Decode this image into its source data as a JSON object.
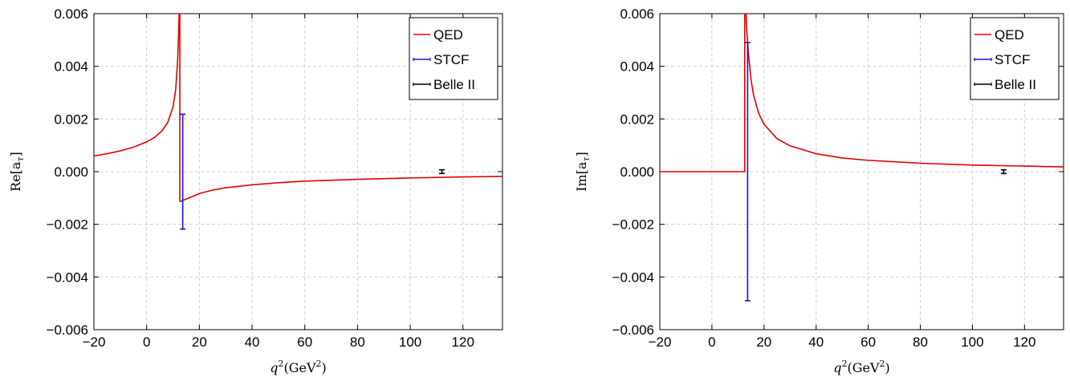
{
  "chart_data": [
    {
      "type": "line",
      "ylabel_main": "Re[a",
      "ylabel_sub": "τ",
      "ylabel_close": "]",
      "xlabel_main": "q",
      "xlabel_sup": "2",
      "xlabel_mid": "(GeV",
      "xlabel_sup2": "2",
      "xlabel_close": ")",
      "xlim": [
        -20,
        135
      ],
      "ylim": [
        -0.006,
        0.006
      ],
      "xticks": [
        -20,
        0,
        20,
        40,
        60,
        80,
        100,
        120
      ],
      "xtick_labels": [
        "−20",
        "0",
        "20",
        "40",
        "60",
        "80",
        "100",
        "120"
      ],
      "yticks": [
        -0.006,
        -0.004,
        -0.002,
        0.0,
        0.002,
        0.004,
        0.006
      ],
      "ytick_labels": [
        "−0.006",
        "−0.004",
        "−0.002",
        "0.000",
        "0.002",
        "0.004",
        "0.006"
      ],
      "grid": true,
      "legend_position": "top-right",
      "colors": {
        "qed": "#e00000",
        "stcf": "#1515c8",
        "belle": "#000000"
      },
      "series": [
        {
          "name": "QED",
          "x": [
            -20,
            -15,
            -10,
            -5,
            0,
            3,
            6,
            8,
            10,
            11,
            11.7,
            12.1,
            12.3,
            12.6,
            12.6,
            13,
            14,
            16,
            20,
            25,
            30,
            40,
            50,
            60,
            80,
            100,
            120,
            135
          ],
          "y": [
            0.0006,
            0.00068,
            0.00079,
            0.00093,
            0.00113,
            0.0013,
            0.00157,
            0.00187,
            0.00245,
            0.0031,
            0.0041,
            0.0051,
            0.0059,
            0.0075,
            -0.00112,
            -0.00113,
            -0.00108,
            -0.001,
            -0.00083,
            -0.0007,
            -0.00061,
            -0.0005,
            -0.00042,
            -0.00036,
            -0.00029,
            -0.00024,
            -0.0002,
            -0.00018
          ]
        },
        {
          "name": "STCF",
          "points": [
            {
              "x": 13.7,
              "y": 0.0,
              "yerr": 0.00218
            }
          ]
        },
        {
          "name": "Belle II",
          "points": [
            {
              "x": 112,
              "y": 0.0,
              "yerr": 7e-05
            }
          ]
        }
      ]
    },
    {
      "type": "line",
      "ylabel_main": "Im[a",
      "ylabel_sub": "τ",
      "ylabel_close": "]",
      "xlabel_main": "q",
      "xlabel_sup": "2",
      "xlabel_mid": "(GeV",
      "xlabel_sup2": "2",
      "xlabel_close": ")",
      "xlim": [
        -20,
        135
      ],
      "ylim": [
        -0.006,
        0.006
      ],
      "xticks": [
        -20,
        0,
        20,
        40,
        60,
        80,
        100,
        120
      ],
      "xtick_labels": [
        "−20",
        "0",
        "20",
        "40",
        "60",
        "80",
        "100",
        "120"
      ],
      "yticks": [
        -0.006,
        -0.004,
        -0.002,
        0.0,
        0.002,
        0.004,
        0.006
      ],
      "ytick_labels": [
        "−0.006",
        "−0.004",
        "−0.002",
        "0.000",
        "0.002",
        "0.004",
        "0.006"
      ],
      "grid": true,
      "legend_position": "top-right",
      "colors": {
        "qed": "#e00000",
        "stcf": "#1515c8",
        "belle": "#000000"
      },
      "series": [
        {
          "name": "QED",
          "x": [
            -20,
            0,
            12.6,
            12.6,
            12.9,
            13.3,
            14,
            15,
            16,
            18,
            20,
            25,
            30,
            40,
            50,
            60,
            80,
            100,
            120,
            135
          ],
          "y": [
            0.0,
            0.0,
            0.0,
            0.0075,
            0.0066,
            0.0055,
            0.0045,
            0.0035,
            0.0029,
            0.0022,
            0.0018,
            0.00125,
            0.00098,
            0.00068,
            0.00052,
            0.00043,
            0.00032,
            0.00025,
            0.00021,
            0.00018
          ]
        },
        {
          "name": "STCF",
          "points": [
            {
              "x": 13.7,
              "y": 0.0,
              "yerr": 0.0049
            }
          ]
        },
        {
          "name": "Belle II",
          "points": [
            {
              "x": 112,
              "y": 0.0,
              "yerr": 7e-05
            }
          ]
        }
      ]
    }
  ]
}
